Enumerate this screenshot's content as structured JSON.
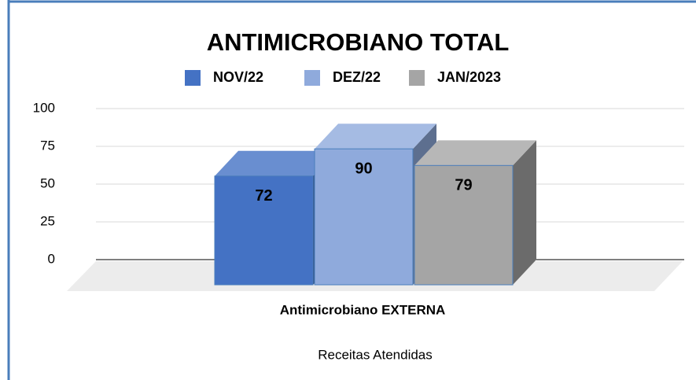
{
  "chart_data": {
    "type": "bar3d",
    "title": "ANTIMICROBIANO TOTAL",
    "categories": [
      "Antimicrobiano EXTERNA"
    ],
    "x_label": "Receitas Atendidas",
    "series": [
      {
        "name": "NOV/22",
        "color": "#4472c4",
        "values": [
          72
        ]
      },
      {
        "name": "DEZ/22",
        "color": "#8faadc",
        "values": [
          90
        ]
      },
      {
        "name": "JAN/2023",
        "color": "#a5a5a5",
        "values": [
          79
        ]
      }
    ],
    "ylim": [
      0,
      100
    ],
    "yticks": [
      0,
      25,
      50,
      75,
      100
    ],
    "grid": true,
    "legend": "top"
  }
}
